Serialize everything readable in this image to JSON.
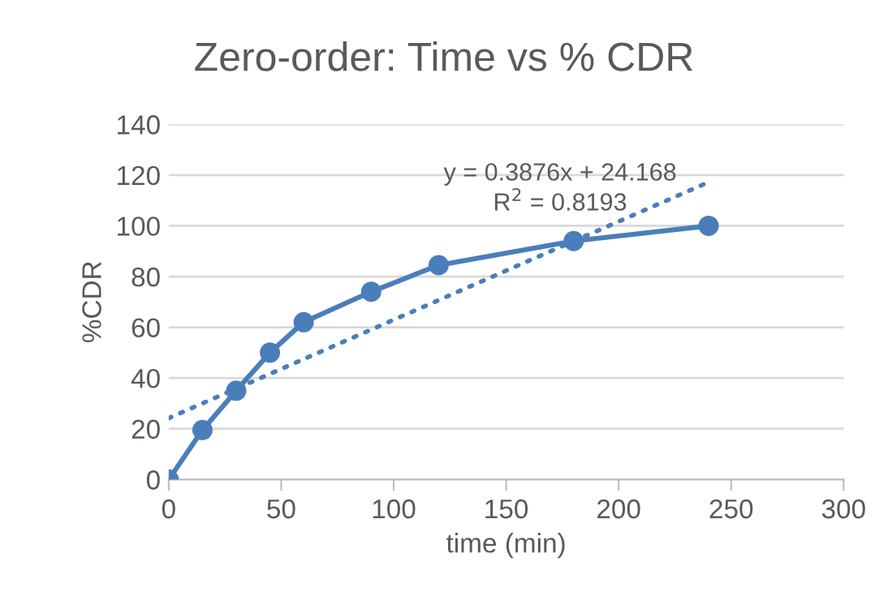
{
  "chart_data": {
    "type": "line",
    "title": "Zero-order: Time vs % CDR",
    "xlabel": "time (min)",
    "ylabel": "%CDR",
    "x": [
      0,
      15,
      30,
      45,
      60,
      90,
      120,
      180,
      240
    ],
    "series": [
      {
        "color": "#4a7ebb",
        "marker": "circle",
        "line_style": "solid",
        "values": [
          0,
          19.5,
          35,
          50,
          62,
          74,
          84.5,
          94,
          100
        ]
      },
      {
        "color": "#4a7ebb",
        "marker": "none",
        "line_style": "dotted",
        "x": [
          0,
          240
        ],
        "values": [
          24.2,
          117.2
        ]
      }
    ],
    "annotations": [
      "y = 0.3876x + 24.168",
      "R$^{2}$ = 0.8193"
    ],
    "xlim": [
      0,
      300
    ],
    "xticks": [
      0,
      50,
      100,
      150,
      200,
      250,
      300
    ],
    "ylim": [
      0,
      140
    ],
    "yticks": [
      0,
      20,
      40,
      60,
      80,
      100,
      120,
      140
    ],
    "grid": "y",
    "legend": false
  }
}
